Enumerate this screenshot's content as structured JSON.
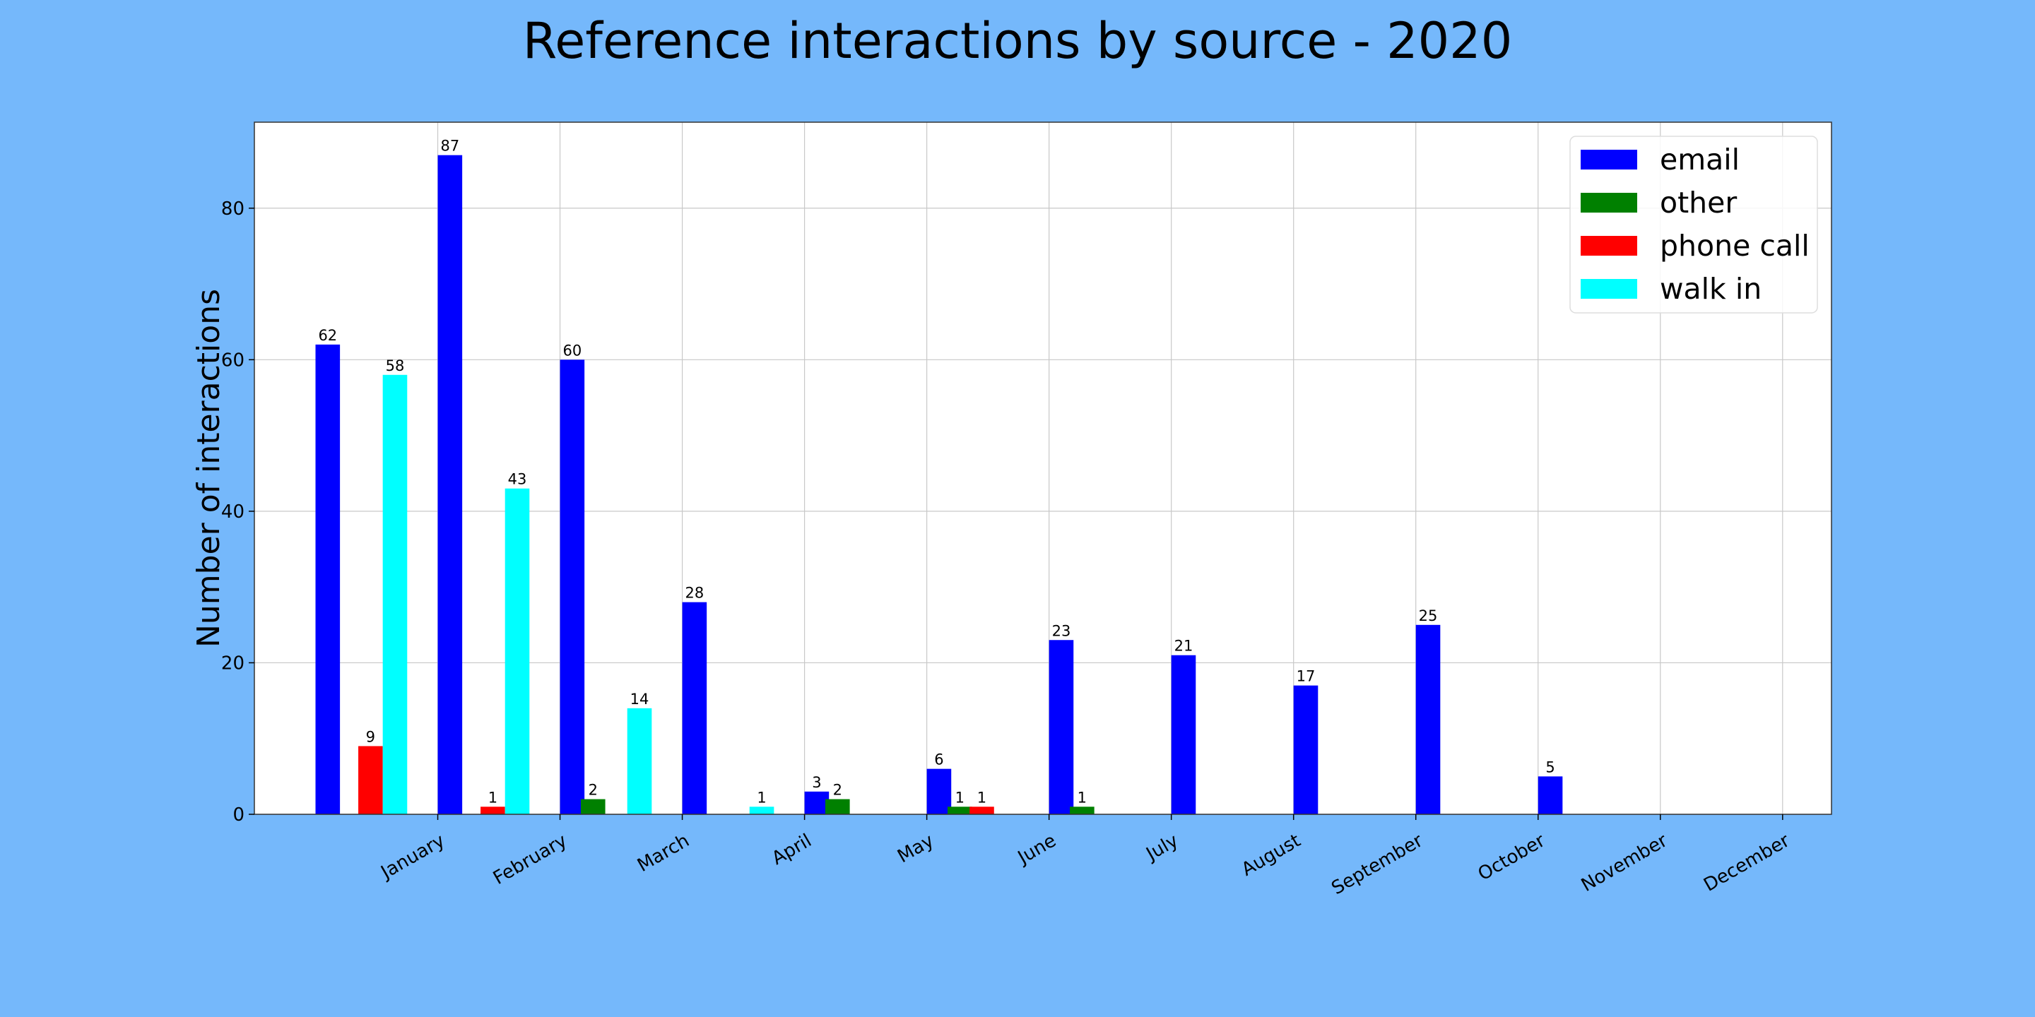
{
  "chart_data": {
    "type": "bar",
    "title": "Reference interactions by source - 2020",
    "xlabel": "",
    "ylabel": "Number of interactions",
    "ylim": [
      0,
      91.35
    ],
    "yticks": [
      0,
      20,
      40,
      60,
      80
    ],
    "grid": true,
    "legend_position": "top-right",
    "categories": [
      "January",
      "February",
      "March",
      "April",
      "May",
      "June",
      "July",
      "August",
      "September",
      "October",
      "November",
      "December"
    ],
    "bars": [
      {
        "series": "email",
        "x": -0.9,
        "value": 62
      },
      {
        "series": "phone call",
        "x": -0.55,
        "value": 9
      },
      {
        "series": "walk in",
        "x": -0.35,
        "value": 58
      },
      {
        "series": "email",
        "x": 0.1,
        "value": 87
      },
      {
        "series": "phone call",
        "x": 0.45,
        "value": 1
      },
      {
        "series": "walk in",
        "x": 0.65,
        "value": 43
      },
      {
        "series": "email",
        "x": 1.1,
        "value": 60
      },
      {
        "series": "other",
        "x": 1.27,
        "value": 2
      },
      {
        "series": "walk in",
        "x": 1.65,
        "value": 14
      },
      {
        "series": "email",
        "x": 2.1,
        "value": 28
      },
      {
        "series": "walk in",
        "x": 2.65,
        "value": 1
      },
      {
        "series": "email",
        "x": 3.1,
        "value": 3
      },
      {
        "series": "other",
        "x": 3.27,
        "value": 2
      },
      {
        "series": "email",
        "x": 4.1,
        "value": 6
      },
      {
        "series": "other",
        "x": 4.27,
        "value": 1
      },
      {
        "series": "phone call",
        "x": 4.45,
        "value": 1
      },
      {
        "series": "email",
        "x": 5.1,
        "value": 23
      },
      {
        "series": "other",
        "x": 5.27,
        "value": 1
      },
      {
        "series": "email",
        "x": 6.1,
        "value": 21
      },
      {
        "series": "email",
        "x": 7.1,
        "value": 17
      },
      {
        "series": "email",
        "x": 8.1,
        "value": 25
      },
      {
        "series": "email",
        "x": 9.1,
        "value": 5
      }
    ],
    "series": [
      {
        "name": "email",
        "color": "#0000ff"
      },
      {
        "name": "other",
        "color": "#008000"
      },
      {
        "name": "phone call",
        "color": "#ff0000"
      },
      {
        "name": "walk in",
        "color": "#00ffff"
      }
    ]
  }
}
